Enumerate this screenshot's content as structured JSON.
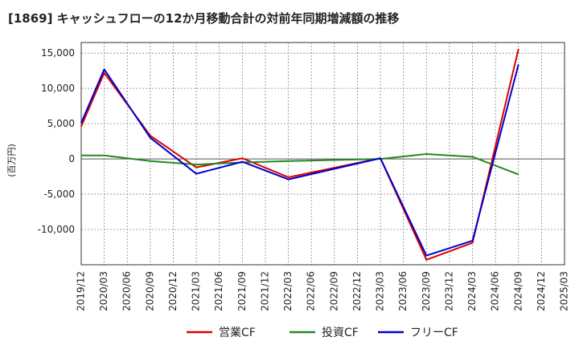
{
  "chart_data": {
    "type": "line",
    "title": "[1869]  キャッシュフローの12か月移動合計の対前年同期増減額の推移",
    "ylabel": "(百万円)",
    "xlabel": "",
    "ylim": [
      -15000,
      16500
    ],
    "yticks": [
      15000,
      10000,
      5000,
      0,
      -5000,
      -10000
    ],
    "ytick_labels": [
      "15,000",
      "10,000",
      "5,000",
      "0",
      "-5,000",
      "-10,000"
    ],
    "categories": [
      "2019/12",
      "2020/03",
      "2020/06",
      "2020/09",
      "2020/12",
      "2021/03",
      "2021/06",
      "2021/09",
      "2021/12",
      "2022/03",
      "2022/06",
      "2022/09",
      "2022/12",
      "2023/03",
      "2023/06",
      "2023/09",
      "2023/12",
      "2024/03",
      "2024/06",
      "2024/09",
      "2024/12",
      "2025/03"
    ],
    "grid": true,
    "legend_position": "bottom",
    "series": [
      {
        "name": "営業CF",
        "color": "#dd0000",
        "values": [
          4600,
          12200,
          null,
          3300,
          null,
          -1200,
          null,
          100,
          null,
          -2600,
          null,
          null,
          null,
          100,
          null,
          -14300,
          null,
          -11900,
          null,
          15600,
          null,
          null
        ]
      },
      {
        "name": "投資CF",
        "color": "#228822",
        "values": [
          500,
          500,
          null,
          -300,
          null,
          -800,
          null,
          -500,
          null,
          -300,
          null,
          null,
          null,
          0,
          null,
          700,
          null,
          300,
          null,
          -2200,
          null,
          null
        ]
      },
      {
        "name": "フリーCF",
        "color": "#0000cc",
        "values": [
          5100,
          12700,
          null,
          3000,
          null,
          -2100,
          null,
          -400,
          null,
          -2900,
          null,
          null,
          null,
          100,
          null,
          -13700,
          null,
          -11600,
          null,
          13400,
          null,
          null
        ]
      }
    ]
  }
}
